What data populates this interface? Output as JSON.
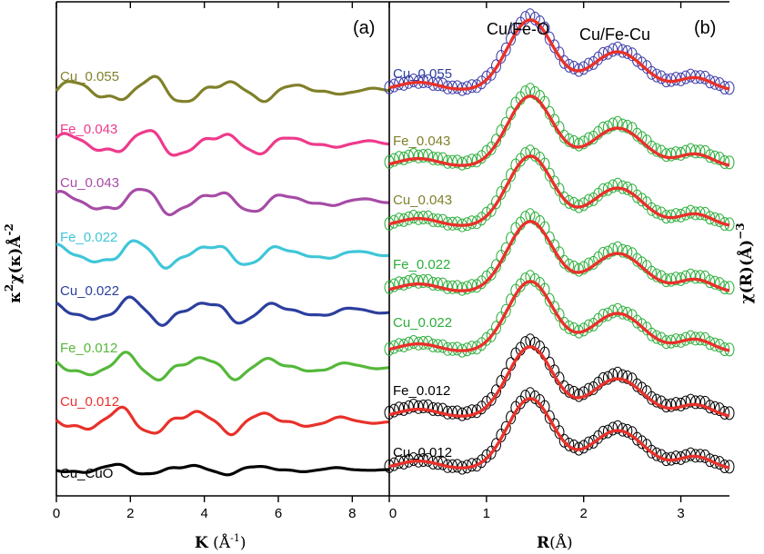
{
  "chart_data": [
    {
      "panel": "(a)",
      "type": "line",
      "xlabel_main": "K",
      "xlabel_unit_open": " (Å",
      "xlabel_unit_sup": "-1",
      "xlabel_unit_close": ")",
      "ylabel_base": "κ",
      "ylabel_sup1": "2",
      "ylabel_mid": "χ(κ)Å",
      "ylabel_sup2": "-2",
      "xlim": [
        0,
        9
      ],
      "xticks": [
        "0",
        "2",
        "4",
        "6",
        "8"
      ],
      "xtick_values": [
        0,
        2,
        4,
        6,
        8
      ],
      "grid": false,
      "series": [
        {
          "name": "Cu_0.055",
          "color": "#80802a",
          "offset": 7
        },
        {
          "name": "Fe_0.043",
          "color": "#ee3a8c",
          "offset": 6
        },
        {
          "name": "Cu_0.043",
          "color": "#a64ca6",
          "offset": 5
        },
        {
          "name": "Fe_0.022",
          "color": "#3fc6d8",
          "offset": 4
        },
        {
          "name": "Cu_0.022",
          "color": "#2c3f9e",
          "offset": 3
        },
        {
          "name": "Fe_0.012",
          "color": "#55b83a",
          "offset": 2
        },
        {
          "name": "Cu_0.012",
          "color": "#e8312a",
          "offset": 1
        },
        {
          "name": "Cu_CuO",
          "color": "#000000",
          "offset": 0
        }
      ]
    },
    {
      "panel": "(b)",
      "type": "scatter",
      "xlabel_main": "R",
      "xlabel_unit": "(Å)",
      "ylabel_base": "χ(R)(Å)",
      "ylabel_sup": "−3",
      "xlim": [
        0,
        3.5
      ],
      "xticks": [
        "0",
        "1",
        "2",
        "3"
      ],
      "xtick_values": [
        0,
        1,
        2,
        3
      ],
      "grid": false,
      "annotations": [
        "Cu/Fe-O",
        "Cu/Fe-Cu"
      ],
      "fit_color": "#e8312a",
      "series": [
        {
          "name": "Cu_0.055",
          "color": "#3a3aa8",
          "label_color": "#2c3f9e",
          "offset": 6
        },
        {
          "name": "Fe_0.043",
          "color": "#2bae3a",
          "label_color": "#80802a",
          "offset": 5
        },
        {
          "name": "Cu_0.043",
          "color": "#2bae3a",
          "label_color": "#80802a",
          "offset": 4
        },
        {
          "name": "Fe_0.022",
          "color": "#2bae3a",
          "label_color": "#2bae3a",
          "offset": 3
        },
        {
          "name": "Cu_0.022",
          "color": "#2bae3a",
          "label_color": "#2bae3a",
          "offset": 2
        },
        {
          "name": "Fe_0.012",
          "color": "#000000",
          "label_color": "#000000",
          "offset": 1
        },
        {
          "name": "Cu_0.012",
          "color": "#000000",
          "label_color": "#000000",
          "offset": 0
        }
      ]
    }
  ]
}
